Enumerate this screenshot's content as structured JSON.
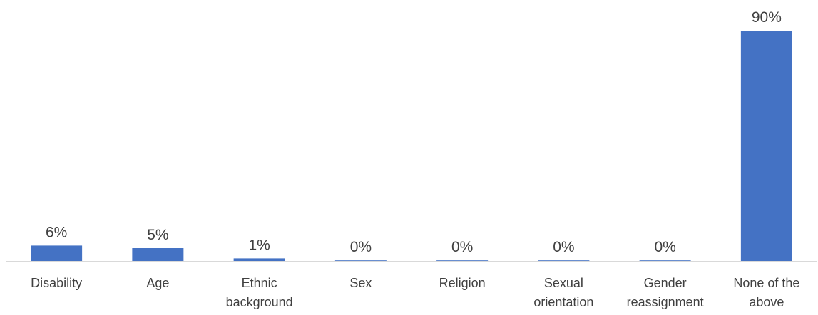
{
  "chart_data": {
    "type": "bar",
    "categories": [
      [
        "Disability"
      ],
      [
        "Age"
      ],
      [
        "Ethnic",
        "background"
      ],
      [
        "Sex"
      ],
      [
        "Religion"
      ],
      [
        "Sexual",
        "orientation"
      ],
      [
        "Gender",
        "reassignment"
      ],
      [
        "None of the",
        "above"
      ]
    ],
    "values": [
      6,
      5,
      1,
      0,
      0,
      0,
      0,
      90
    ],
    "data_labels": [
      "6%",
      "5%",
      "1%",
      "0%",
      "0%",
      "0%",
      "0%",
      "90%"
    ],
    "ylim": [
      0,
      100
    ],
    "grid": false,
    "legend": "none",
    "bar_color": "#4472C4",
    "axis_color": "#D9D9D9",
    "text_color": "#404040"
  }
}
